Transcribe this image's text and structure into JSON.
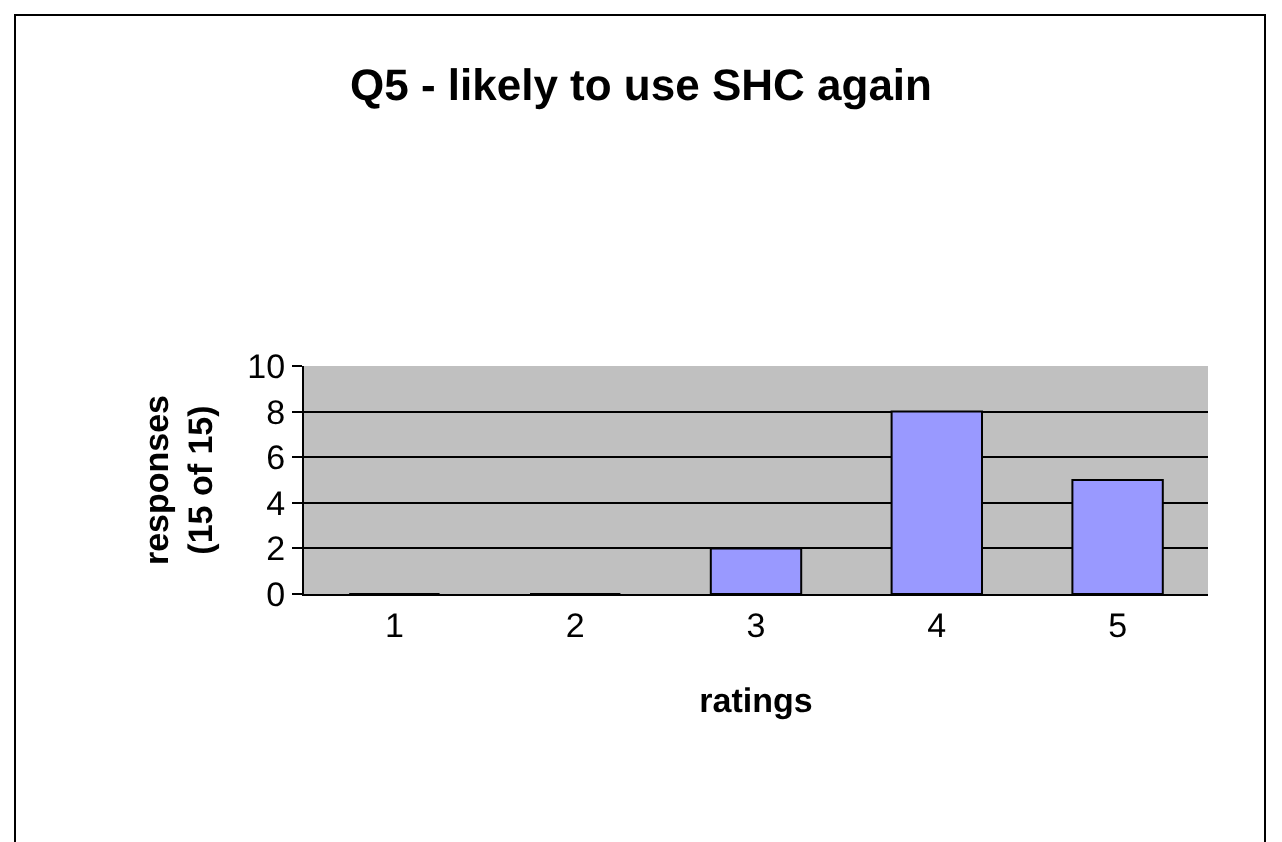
{
  "chart_data": {
    "type": "bar",
    "title": "Q5 - likely to use SHC again",
    "xlabel": "ratings",
    "ylabel": "responses\n(15 of 15)",
    "categories": [
      "1",
      "2",
      "3",
      "4",
      "5"
    ],
    "values": [
      0,
      0,
      2,
      8,
      5
    ],
    "color": "#9999ff",
    "ylim": [
      0,
      10
    ],
    "yticks": [
      0,
      2,
      4,
      6,
      8,
      10
    ],
    "grid": "y"
  }
}
